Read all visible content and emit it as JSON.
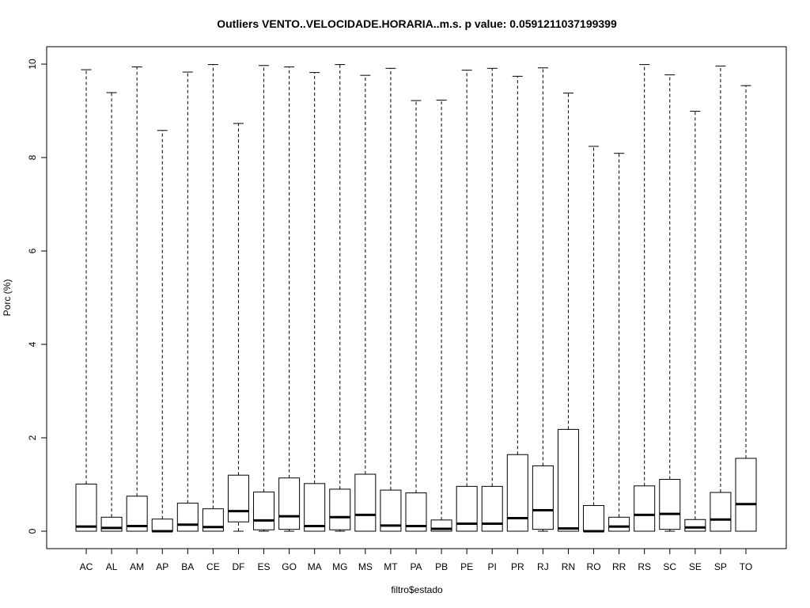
{
  "chart_data": {
    "type": "boxplot",
    "title": "Outliers VENTO..VELOCIDADE.HORARIA..m.s. p value: 0.0591211037199399",
    "xlabel": "filtro$estado",
    "ylabel": "Porc (%)",
    "ylim": [
      -0.4,
      10.4
    ],
    "yticks": [
      0,
      2,
      4,
      6,
      8,
      10
    ],
    "grid": false,
    "legend": "none",
    "categories": [
      "AC",
      "AL",
      "AM",
      "AP",
      "BA",
      "CE",
      "DF",
      "ES",
      "GO",
      "MA",
      "MG",
      "MS",
      "MT",
      "PA",
      "PB",
      "PE",
      "PI",
      "PR",
      "RJ",
      "RN",
      "RO",
      "RR",
      "RS",
      "SC",
      "SE",
      "SP",
      "TO"
    ],
    "boxes": [
      {
        "min": 0,
        "q1": 0,
        "median": 0.1,
        "q3": 1.01,
        "max": 9.88
      },
      {
        "min": 0,
        "q1": 0,
        "median": 0.07,
        "q3": 0.3,
        "max": 9.39
      },
      {
        "min": 0,
        "q1": 0,
        "median": 0.11,
        "q3": 0.75,
        "max": 9.94
      },
      {
        "min": 0,
        "q1": 0,
        "median": 0.0,
        "q3": 0.26,
        "max": 8.58
      },
      {
        "min": 0,
        "q1": 0,
        "median": 0.14,
        "q3": 0.6,
        "max": 9.83
      },
      {
        "min": 0,
        "q1": 0,
        "median": 0.09,
        "q3": 0.48,
        "max": 9.99
      },
      {
        "min": 0,
        "q1": 0.2,
        "median": 0.43,
        "q3": 1.2,
        "max": 8.73
      },
      {
        "min": 0,
        "q1": 0.03,
        "median": 0.23,
        "q3": 0.84,
        "max": 9.97
      },
      {
        "min": 0,
        "q1": 0.04,
        "median": 0.32,
        "q3": 1.14,
        "max": 9.94
      },
      {
        "min": 0,
        "q1": 0,
        "median": 0.11,
        "q3": 1.02,
        "max": 9.82
      },
      {
        "min": 0,
        "q1": 0.03,
        "median": 0.3,
        "q3": 0.9,
        "max": 9.99
      },
      {
        "min": 0,
        "q1": 0,
        "median": 0.35,
        "q3": 1.22,
        "max": 9.76
      },
      {
        "min": 0,
        "q1": 0,
        "median": 0.12,
        "q3": 0.88,
        "max": 9.91
      },
      {
        "min": 0,
        "q1": 0,
        "median": 0.11,
        "q3": 0.82,
        "max": 9.22
      },
      {
        "min": 0,
        "q1": 0,
        "median": 0.05,
        "q3": 0.24,
        "max": 9.23
      },
      {
        "min": 0,
        "q1": 0,
        "median": 0.16,
        "q3": 0.96,
        "max": 9.87
      },
      {
        "min": 0,
        "q1": 0,
        "median": 0.16,
        "q3": 0.96,
        "max": 9.91
      },
      {
        "min": 0,
        "q1": 0,
        "median": 0.28,
        "q3": 1.64,
        "max": 9.74
      },
      {
        "min": 0,
        "q1": 0.04,
        "median": 0.45,
        "q3": 1.4,
        "max": 9.92
      },
      {
        "min": 0,
        "q1": 0,
        "median": 0.06,
        "q3": 2.18,
        "max": 9.38
      },
      {
        "min": 0,
        "q1": 0,
        "median": 0.0,
        "q3": 0.55,
        "max": 8.24
      },
      {
        "min": 0,
        "q1": 0,
        "median": 0.1,
        "q3": 0.3,
        "max": 8.09
      },
      {
        "min": 0,
        "q1": 0,
        "median": 0.35,
        "q3": 0.97,
        "max": 9.99
      },
      {
        "min": 0,
        "q1": 0.04,
        "median": 0.37,
        "q3": 1.11,
        "max": 9.77
      },
      {
        "min": 0,
        "q1": 0,
        "median": 0.08,
        "q3": 0.25,
        "max": 8.99
      },
      {
        "min": 0,
        "q1": 0,
        "median": 0.25,
        "q3": 0.83,
        "max": 9.96
      },
      {
        "min": 0,
        "q1": 0,
        "median": 0.58,
        "q3": 1.56,
        "max": 9.54
      }
    ]
  }
}
